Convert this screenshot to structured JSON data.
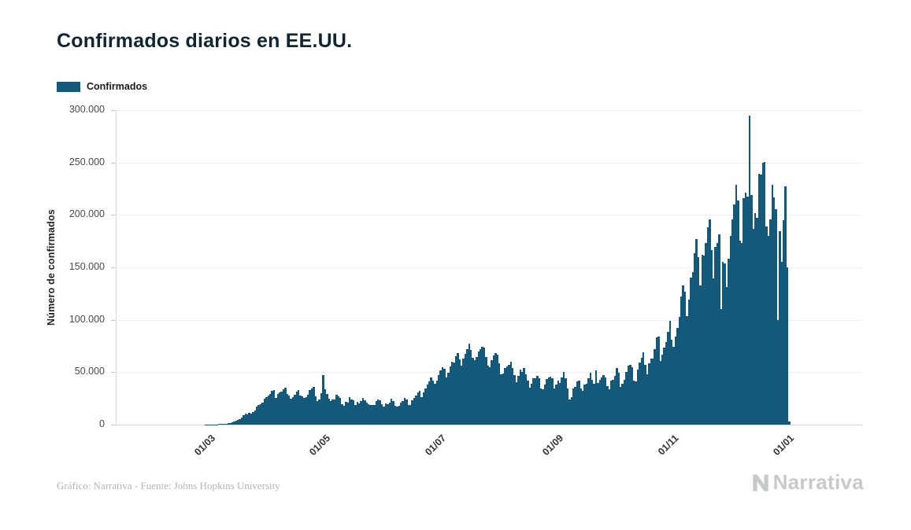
{
  "title": "Confirmados diarios en EE.UU.",
  "legend": {
    "label": "Confirmados",
    "color": "#14587a"
  },
  "footer": {
    "credit": "Gráfico: Narrativa - Fuente: Johns Hopkins University",
    "brand": "Narrativa"
  },
  "chart_data": {
    "type": "bar",
    "title": "Confirmados diarios en EE.UU.",
    "series_name": "Confirmados",
    "xlabel": "",
    "ylabel": "Número de confirmados",
    "ylim": [
      0,
      300000
    ],
    "bar_color": "#14587a",
    "grid": true,
    "legend_position": "top-left",
    "y_ticks": [
      {
        "value": 0,
        "label": "0"
      },
      {
        "value": 50000,
        "label": "50.000"
      },
      {
        "value": 100000,
        "label": "100.000"
      },
      {
        "value": 150000,
        "label": "150.000"
      },
      {
        "value": 200000,
        "label": "200.000"
      },
      {
        "value": 250000,
        "label": "250.000"
      },
      {
        "value": 300000,
        "label": "300.000"
      }
    ],
    "x_ticks": [
      {
        "index": 49,
        "label": "01/03"
      },
      {
        "index": 110,
        "label": "01/05"
      },
      {
        "index": 171,
        "label": "01/07"
      },
      {
        "index": 233,
        "label": "01/09"
      },
      {
        "index": 294,
        "label": "01/11"
      },
      {
        "index": 355,
        "label": "01/01"
      }
    ],
    "values": [
      0,
      0,
      0,
      0,
      0,
      0,
      0,
      0,
      0,
      0,
      1,
      1,
      2,
      0,
      1,
      3,
      0,
      0,
      2,
      1,
      1,
      0,
      0,
      3,
      0,
      2,
      0,
      0,
      1,
      2,
      0,
      2,
      1,
      1,
      0,
      0,
      3,
      1,
      5,
      8,
      6,
      11,
      18,
      24,
      20,
      31,
      45,
      60,
      68,
      70,
      100,
      150,
      250,
      350,
      450,
      590,
      680,
      780,
      1000,
      1300,
      1700,
      2200,
      2900,
      3600,
      4600,
      5600,
      7000,
      8800,
      10500,
      9900,
      11200,
      10300,
      12200,
      13600,
      17000,
      18700,
      19500,
      21000,
      24400,
      26200,
      27400,
      28900,
      32100,
      33300,
      25300,
      29600,
      30700,
      31700,
      33800,
      35100,
      28900,
      27600,
      25000,
      26400,
      28700,
      31500,
      32900,
      28100,
      26900,
      25400,
      26000,
      28700,
      33300,
      34300,
      36200,
      27200,
      22500,
      24100,
      29700,
      47500,
      34000,
      29300,
      24900,
      22300,
      23800,
      24300,
      28400,
      27300,
      25200,
      19700,
      18100,
      21500,
      20700,
      26100,
      24200,
      23200,
      18600,
      21800,
      20300,
      22300,
      25400,
      23300,
      21000,
      19800,
      18400,
      18900,
      19000,
      22600,
      24100,
      23000,
      19200,
      17000,
      20500,
      19600,
      21100,
      24700,
      22300,
      17900,
      17500,
      18300,
      20900,
      22800,
      25600,
      24200,
      18600,
      19000,
      23200,
      25700,
      27800,
      30600,
      31900,
      26000,
      30800,
      34700,
      38600,
      41000,
      45300,
      42100,
      38800,
      41700,
      47300,
      52100,
      54500,
      53200,
      45000,
      49500,
      55400,
      60000,
      59300,
      65300,
      68000,
      61900,
      56000,
      63200,
      67800,
      71700,
      77200,
      71500,
      63700,
      61200,
      64500,
      70100,
      72000,
      74200,
      73500,
      64600,
      56100,
      54500,
      61800,
      65900,
      68000,
      67000,
      58400,
      47700,
      49000,
      53700,
      55200,
      57100,
      59700,
      54200,
      47100,
      40500,
      46800,
      52400,
      50500,
      53900,
      48100,
      42300,
      35100,
      39100,
      44200,
      44500,
      46200,
      44000,
      34500,
      33700,
      38300,
      43800,
      45300,
      46100,
      44100,
      34400,
      38000,
      42000,
      39700,
      44700,
      50600,
      44100,
      34300,
      23800,
      26100,
      34800,
      36000,
      41500,
      41800,
      34300,
      32400,
      38300,
      39100,
      44600,
      49800,
      42800,
      38900,
      52000,
      39500,
      43100,
      45100,
      47000,
      45300,
      36900,
      33900,
      42200,
      43000,
      46400,
      54300,
      49400,
      35800,
      39200,
      42600,
      50400,
      56200,
      57100,
      54600,
      41700,
      41400,
      52200,
      59500,
      63600,
      69100,
      57200,
      48200,
      58400,
      62800,
      62700,
      71700,
      83000,
      83800,
      60800,
      66800,
      73200,
      78400,
      88500,
      99300,
      81200,
      74200,
      84100,
      91900,
      102800,
      121900,
      132800,
      126500,
      103600,
      119500,
      139900,
      145500,
      163400,
      177200,
      159800,
      133000,
      161900,
      161000,
      172900,
      187900,
      196000,
      166600,
      139400,
      169200,
      172900,
      181500,
      110600,
      154900,
      154000,
      131500,
      157900,
      180100,
      195700,
      210200,
      228400,
      213900,
      175700,
      173300,
      215900,
      220900,
      217700,
      295100,
      219200,
      186800,
      201800,
      197600,
      239300,
      238200,
      249700,
      250200,
      189000,
      180200,
      195700,
      228400,
      216900,
      205400,
      99400,
      184400,
      155300,
      194900,
      226900,
      150000,
      2900
    ]
  }
}
